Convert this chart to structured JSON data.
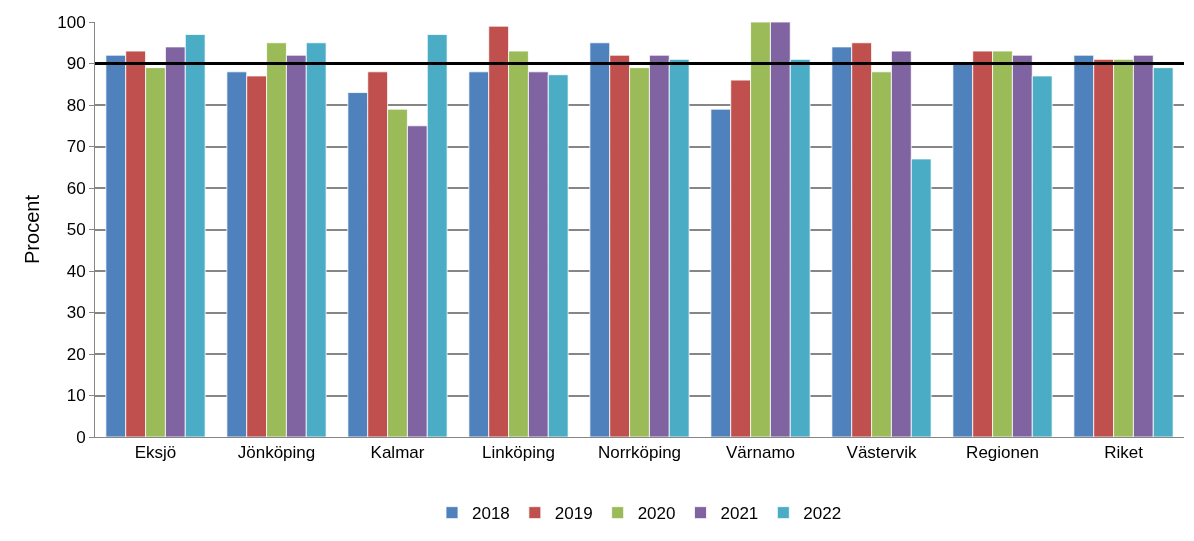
{
  "chart_data": {
    "type": "bar",
    "ylabel": "Procent",
    "categories": [
      "Eksjö",
      "Jönköping",
      "Kalmar",
      "Linköping",
      "Norrköping",
      "Värnamo",
      "Västervik",
      "Regionen",
      "Riket"
    ],
    "series": [
      {
        "name": "2018",
        "color": "#4f81bd",
        "values": [
          92,
          88,
          83,
          88,
          95,
          79,
          94,
          90,
          92
        ]
      },
      {
        "name": "2019",
        "color": "#c0504d",
        "values": [
          93,
          87,
          88,
          99,
          92,
          86,
          95,
          93,
          91
        ]
      },
      {
        "name": "2020",
        "color": "#9bbb59",
        "values": [
          89,
          95,
          79,
          93,
          89,
          100,
          88,
          93,
          91
        ]
      },
      {
        "name": "2021",
        "color": "#8064a2",
        "values": [
          94,
          92,
          75,
          88,
          92,
          100,
          93,
          92,
          92
        ]
      },
      {
        "name": "2022",
        "color": "#4bacc6",
        "values": [
          97,
          95,
          97,
          87.3,
          91,
          91,
          67,
          87,
          89
        ]
      }
    ],
    "ylim": [
      0,
      100
    ],
    "yticks": [
      0,
      10,
      20,
      30,
      40,
      50,
      60,
      70,
      80,
      90,
      100
    ],
    "ref_lines": [
      {
        "axis": "y",
        "value": 90,
        "color": "#000000"
      }
    ],
    "grid": "y",
    "legend": "bottom"
  }
}
